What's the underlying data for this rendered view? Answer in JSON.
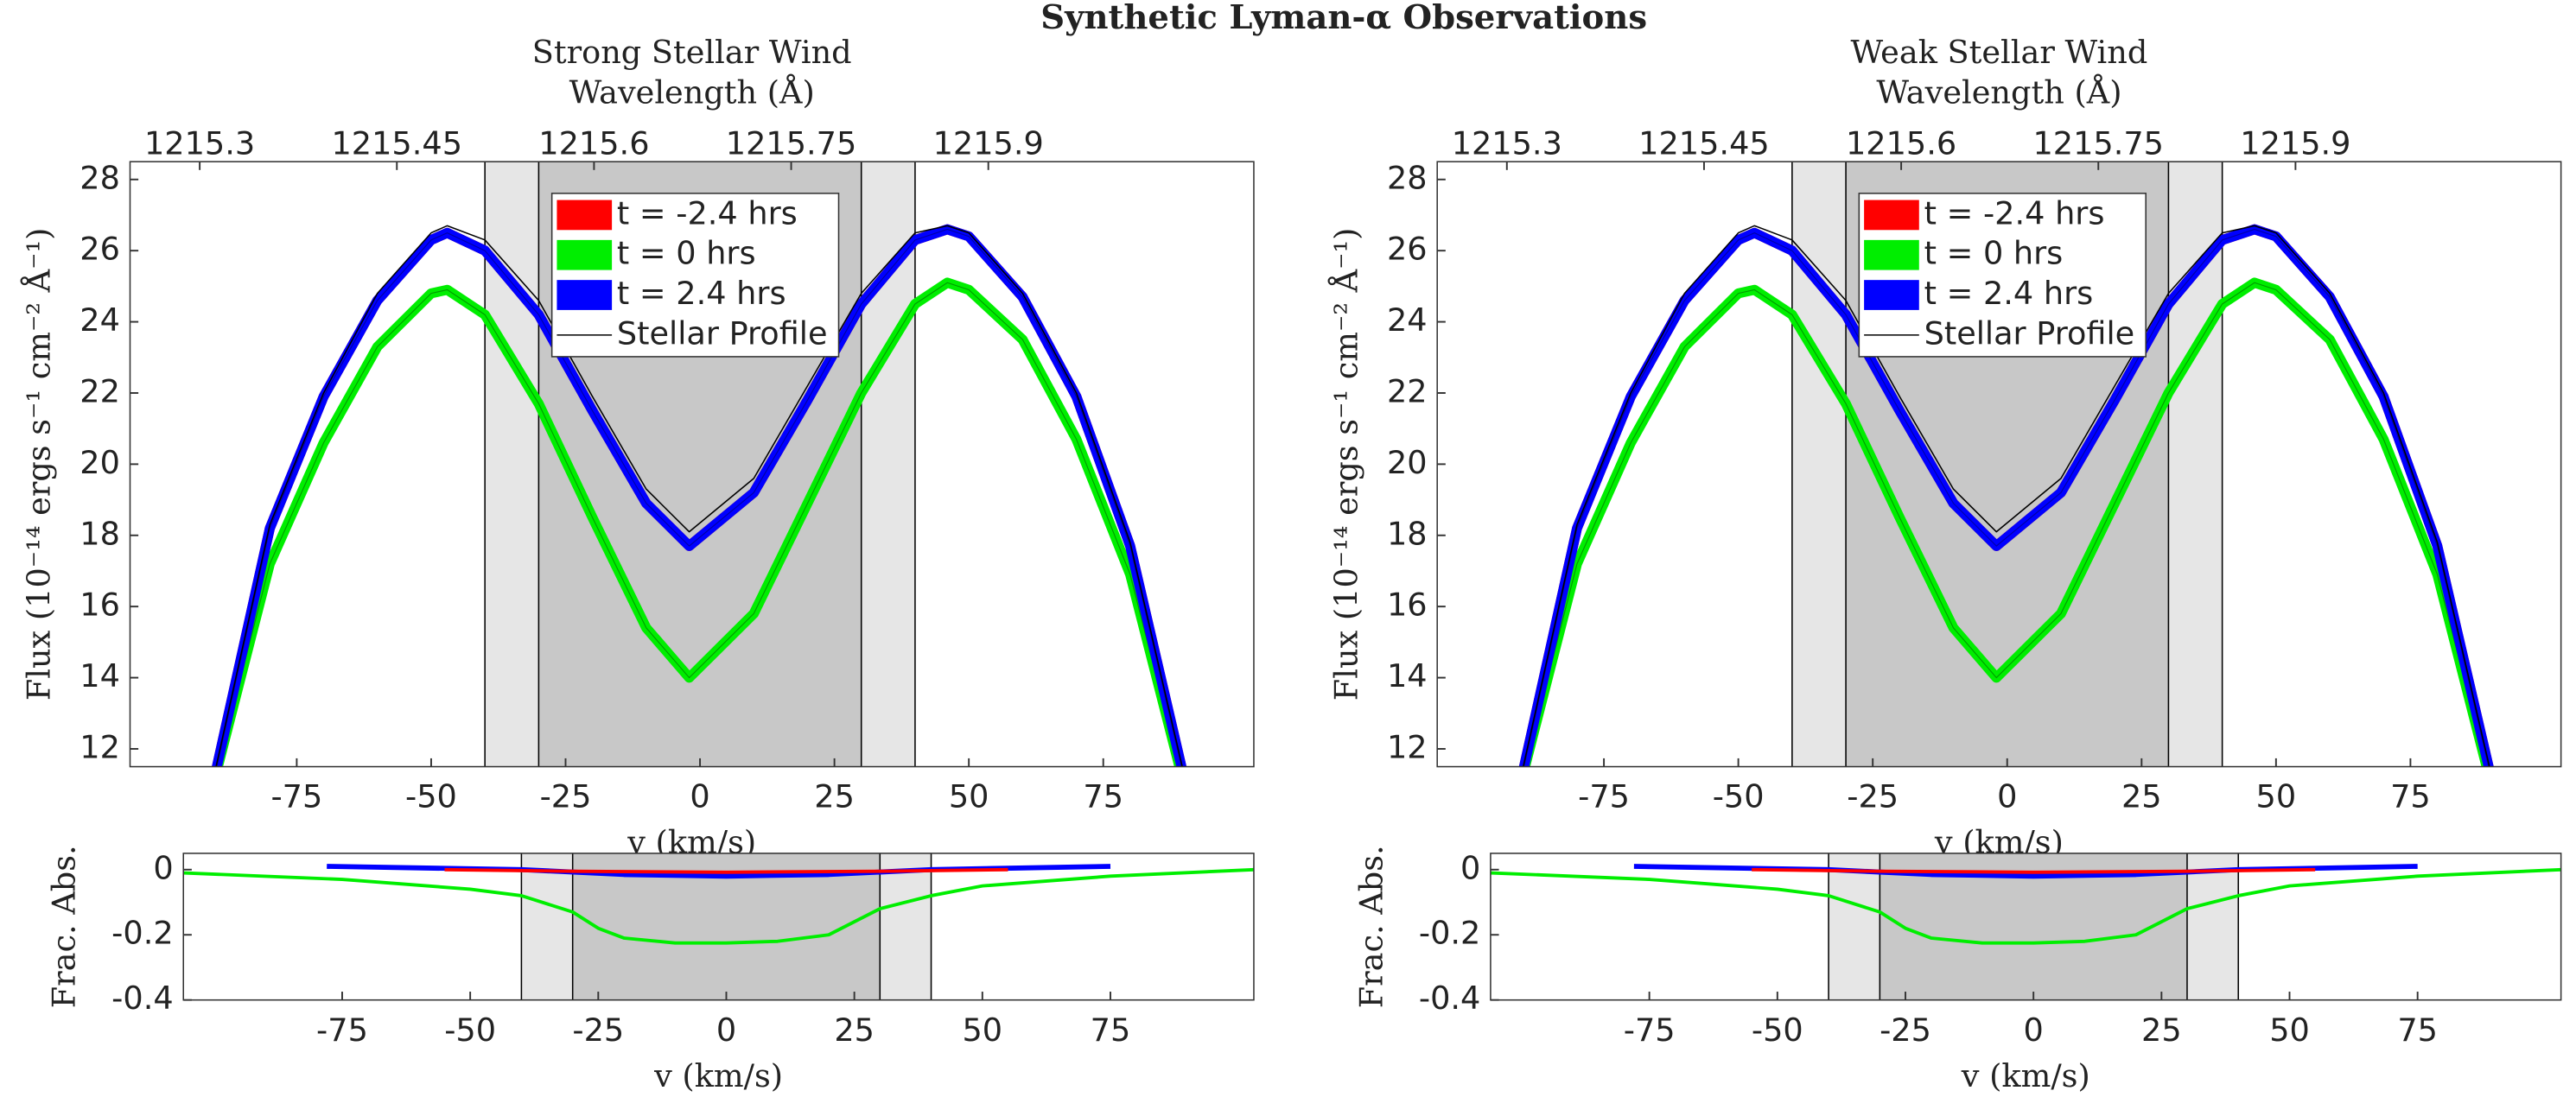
{
  "title": "Synthetic Lyman-α Observations",
  "chart_data": [
    {
      "type": "line",
      "title": "Strong Stellar Wind",
      "x2label": "Wavelength (Å)",
      "xlabel": "v (km/s)",
      "ylabel": "Flux (10⁻¹⁴ ergs s⁻¹ cm⁻² Å⁻¹)",
      "xlim": [
        -106,
        103
      ],
      "xticks": [
        -75,
        -50,
        -25,
        0,
        25,
        50,
        75
      ],
      "x2lim": [
        1215.247,
        1216.102
      ],
      "x2ticks": [
        1215.3,
        1215.45,
        1215.6,
        1215.75,
        1215.9
      ],
      "ylim": [
        11.5,
        28.5
      ],
      "yticks": [
        12,
        14,
        16,
        18,
        20,
        22,
        24,
        26,
        28
      ],
      "regions": [
        {
          "range": [
            -40,
            40
          ],
          "color": "#e6e6e6"
        },
        {
          "range": [
            -30,
            30
          ],
          "color": "#c8c8c8"
        }
      ],
      "legend": "upper center",
      "series": [
        {
          "name": "t = -2.4 hrs",
          "color": "#ff0000",
          "line_width": 6,
          "x": [
            -90,
            -80,
            -70,
            -60,
            -50,
            -47,
            -40,
            -30,
            -20,
            -10,
            -2,
            10,
            20,
            30,
            40,
            46,
            50,
            60,
            70,
            80,
            90
          ],
          "values": [
            11.4,
            18.2,
            21.9,
            24.6,
            26.3,
            26.5,
            26.0,
            24.2,
            21.5,
            18.9,
            17.7,
            19.2,
            21.8,
            24.5,
            26.3,
            26.6,
            26.4,
            24.7,
            21.9,
            17.7,
            11.2
          ]
        },
        {
          "name": "t = 0 hrs",
          "color": "#00ee00",
          "line_width": 6,
          "x": [
            -90,
            -80,
            -70,
            -60,
            -50,
            -47,
            -40,
            -30,
            -20,
            -10,
            -2,
            10,
            20,
            30,
            40,
            46,
            50,
            60,
            70,
            80,
            90
          ],
          "values": [
            11.3,
            17.2,
            20.6,
            23.3,
            24.8,
            24.9,
            24.2,
            21.7,
            18.5,
            15.4,
            14.0,
            15.8,
            18.9,
            22.0,
            24.5,
            25.1,
            24.9,
            23.5,
            20.7,
            16.9,
            11.0
          ]
        },
        {
          "name": "t = 2.4 hrs",
          "color": "#0000ff",
          "line_width": 6,
          "x": [
            -90,
            -80,
            -70,
            -60,
            -50,
            -47,
            -40,
            -30,
            -20,
            -10,
            -2,
            10,
            20,
            30,
            40,
            46,
            50,
            60,
            70,
            80,
            90
          ],
          "values": [
            11.4,
            18.2,
            21.9,
            24.6,
            26.3,
            26.5,
            26.0,
            24.2,
            21.5,
            18.9,
            17.7,
            19.2,
            21.8,
            24.5,
            26.3,
            26.6,
            26.4,
            24.7,
            21.9,
            17.7,
            11.2
          ]
        },
        {
          "name": "Stellar Profile",
          "color": "#000000",
          "line_width": 0.8,
          "x": [
            -90,
            -80,
            -70,
            -60,
            -50,
            -47,
            -40,
            -30,
            -20,
            -10,
            -2,
            10,
            20,
            30,
            40,
            46,
            50,
            60,
            70,
            80,
            90
          ],
          "values": [
            11.5,
            18.3,
            22.0,
            24.8,
            26.5,
            26.7,
            26.3,
            24.6,
            21.9,
            19.3,
            18.1,
            19.6,
            22.2,
            24.8,
            26.5,
            26.7,
            26.5,
            24.8,
            22.0,
            17.8,
            11.3
          ]
        }
      ]
    },
    {
      "type": "line",
      "title": "Weak Stellar Wind",
      "x2label": "Wavelength (Å)",
      "xlabel": "v (km/s)",
      "ylabel": "Flux (10⁻¹⁴ ergs s⁻¹ cm⁻² Å⁻¹)",
      "xlim": [
        -106,
        103
      ],
      "xticks": [
        -75,
        -50,
        -25,
        0,
        25,
        50,
        75
      ],
      "x2lim": [
        1215.247,
        1216.102
      ],
      "x2ticks": [
        1215.3,
        1215.45,
        1215.6,
        1215.75,
        1215.9
      ],
      "ylim": [
        11.5,
        28.5
      ],
      "yticks": [
        12,
        14,
        16,
        18,
        20,
        22,
        24,
        26,
        28
      ],
      "regions": [
        {
          "range": [
            -40,
            40
          ],
          "color": "#e6e6e6"
        },
        {
          "range": [
            -30,
            30
          ],
          "color": "#c8c8c8"
        }
      ],
      "legend": "upper center",
      "series": [
        {
          "name": "t = -2.4 hrs",
          "color": "#ff0000",
          "line_width": 6,
          "x": [
            -90,
            -80,
            -70,
            -60,
            -50,
            -47,
            -40,
            -30,
            -20,
            -10,
            -2,
            10,
            20,
            30,
            40,
            46,
            50,
            60,
            70,
            80,
            90
          ],
          "values": [
            11.4,
            18.2,
            21.9,
            24.6,
            26.3,
            26.5,
            26.0,
            24.2,
            21.5,
            18.9,
            17.7,
            19.2,
            21.8,
            24.5,
            26.3,
            26.6,
            26.4,
            24.7,
            21.9,
            17.7,
            11.2
          ]
        },
        {
          "name": "t = 0 hrs",
          "color": "#00ee00",
          "line_width": 6,
          "x": [
            -90,
            -80,
            -70,
            -60,
            -50,
            -47,
            -40,
            -30,
            -20,
            -10,
            -2,
            10,
            20,
            30,
            40,
            46,
            50,
            60,
            70,
            80,
            90
          ],
          "values": [
            11.3,
            17.2,
            20.6,
            23.3,
            24.8,
            24.9,
            24.2,
            21.7,
            18.5,
            15.4,
            14.0,
            15.8,
            18.9,
            22.0,
            24.5,
            25.1,
            24.9,
            23.5,
            20.7,
            16.9,
            11.0
          ]
        },
        {
          "name": "t = 2.4 hrs",
          "color": "#0000ff",
          "line_width": 6,
          "x": [
            -90,
            -80,
            -70,
            -60,
            -50,
            -47,
            -40,
            -30,
            -20,
            -10,
            -2,
            10,
            20,
            30,
            40,
            46,
            50,
            60,
            70,
            80,
            90
          ],
          "values": [
            11.4,
            18.2,
            21.9,
            24.6,
            26.3,
            26.5,
            26.0,
            24.2,
            21.5,
            18.9,
            17.7,
            19.2,
            21.8,
            24.5,
            26.3,
            26.6,
            26.4,
            24.7,
            21.9,
            17.7,
            11.2
          ]
        },
        {
          "name": "Stellar Profile",
          "color": "#000000",
          "line_width": 0.8,
          "x": [
            -90,
            -80,
            -70,
            -60,
            -50,
            -47,
            -40,
            -30,
            -20,
            -10,
            -2,
            10,
            20,
            30,
            40,
            46,
            50,
            60,
            70,
            80,
            90
          ],
          "values": [
            11.5,
            18.3,
            22.0,
            24.8,
            26.5,
            26.7,
            26.3,
            24.6,
            21.9,
            19.3,
            18.1,
            19.6,
            22.2,
            24.8,
            26.5,
            26.7,
            26.5,
            24.8,
            22.0,
            17.8,
            11.3
          ]
        }
      ]
    },
    {
      "type": "line",
      "xlabel": "v (km/s)",
      "ylabel": "Frac. Abs.",
      "xlim": [
        -106,
        103
      ],
      "xticks": [
        -75,
        -50,
        -25,
        0,
        25,
        50,
        75
      ],
      "ylim": [
        -0.4,
        0.05
      ],
      "yticks": [
        0,
        -0.2,
        -0.4
      ],
      "regions": [
        {
          "range": [
            -40,
            40
          ],
          "color": "#e6e6e6"
        },
        {
          "range": [
            -30,
            30
          ],
          "color": "#c8c8c8"
        }
      ],
      "series": [
        {
          "color": "#00ee00",
          "line_width": 2,
          "x": [
            -106,
            -75,
            -50,
            -40,
            -30,
            -25,
            -20,
            -10,
            0,
            10,
            20,
            25,
            30,
            40,
            50,
            75,
            103
          ],
          "values": [
            -0.01,
            -0.03,
            -0.06,
            -0.08,
            -0.13,
            -0.18,
            -0.21,
            -0.225,
            -0.225,
            -0.22,
            -0.2,
            -0.16,
            -0.12,
            -0.08,
            -0.05,
            -0.02,
            0
          ]
        },
        {
          "color": "#0000ff",
          "line_width": 3,
          "x": [
            -78,
            -40,
            -20,
            0,
            20,
            40,
            75
          ],
          "values": [
            0.01,
            0,
            -0.015,
            -0.02,
            -0.015,
            0,
            0.01
          ]
        },
        {
          "color": "#ff0000",
          "line_width": 2,
          "x": [
            -55,
            -30,
            0,
            30,
            55
          ],
          "values": [
            0,
            -0.005,
            -0.008,
            -0.005,
            0
          ]
        }
      ]
    },
    {
      "type": "line",
      "xlabel": "v (km/s)",
      "ylabel": "Frac. Abs.",
      "xlim": [
        -106,
        103
      ],
      "xticks": [
        -75,
        -50,
        -25,
        0,
        25,
        50,
        75
      ],
      "ylim": [
        -0.4,
        0.05
      ],
      "yticks": [
        0,
        -0.2,
        -0.4
      ],
      "regions": [
        {
          "range": [
            -40,
            40
          ],
          "color": "#e6e6e6"
        },
        {
          "range": [
            -30,
            30
          ],
          "color": "#c8c8c8"
        }
      ],
      "series": [
        {
          "color": "#00ee00",
          "line_width": 2,
          "x": [
            -106,
            -75,
            -50,
            -40,
            -30,
            -25,
            -20,
            -10,
            0,
            10,
            20,
            25,
            30,
            40,
            50,
            75,
            103
          ],
          "values": [
            -0.01,
            -0.03,
            -0.06,
            -0.08,
            -0.13,
            -0.18,
            -0.21,
            -0.225,
            -0.225,
            -0.22,
            -0.2,
            -0.16,
            -0.12,
            -0.08,
            -0.05,
            -0.02,
            0
          ]
        },
        {
          "color": "#0000ff",
          "line_width": 3,
          "x": [
            -78,
            -40,
            -20,
            0,
            20,
            40,
            75
          ],
          "values": [
            0.01,
            0,
            -0.015,
            -0.02,
            -0.015,
            0,
            0.01
          ]
        },
        {
          "color": "#ff0000",
          "line_width": 2,
          "x": [
            -55,
            -30,
            0,
            30,
            55
          ],
          "values": [
            0,
            -0.005,
            -0.008,
            -0.005,
            0
          ]
        }
      ]
    }
  ]
}
